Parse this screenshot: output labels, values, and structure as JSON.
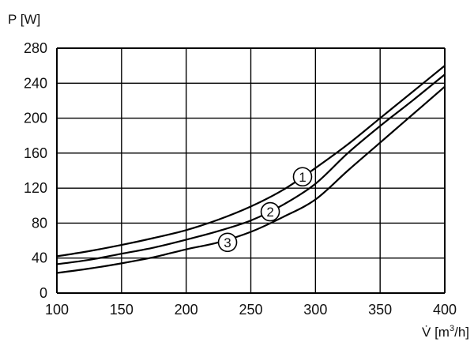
{
  "chart_data": {
    "type": "line",
    "ylabel": "P [W]",
    "xlabel_main": "V̇ [m",
    "xlabel_sup": "3",
    "xlabel_tail": "/h]",
    "xlim": [
      100,
      400
    ],
    "ylim": [
      0,
      280
    ],
    "xticks": [
      100,
      150,
      200,
      250,
      300,
      350,
      400
    ],
    "yticks": [
      0,
      40,
      80,
      120,
      160,
      200,
      240,
      280
    ],
    "grid": true,
    "series": [
      {
        "marker": "1",
        "x": [
          100,
          125,
          150,
          175,
          200,
          225,
          250,
          275,
          300,
          325,
          350,
          375,
          400
        ],
        "y": [
          42,
          48,
          55,
          63,
          72,
          84,
          99,
          118,
          143,
          170,
          200,
          230,
          260
        ],
        "label_at": [
          290,
          133
        ]
      },
      {
        "marker": "2",
        "x": [
          100,
          125,
          150,
          175,
          200,
          225,
          250,
          275,
          300,
          325,
          350,
          375,
          400
        ],
        "y": [
          33,
          38,
          45,
          52,
          61,
          71,
          83,
          101,
          125,
          160,
          191,
          220,
          250
        ],
        "label_at": [
          265,
          93
        ]
      },
      {
        "marker": "3",
        "x": [
          100,
          125,
          150,
          175,
          200,
          225,
          250,
          275,
          300,
          325,
          350,
          375,
          400
        ],
        "y": [
          23,
          28,
          34,
          41,
          50,
          58,
          70,
          87,
          107,
          140,
          172,
          204,
          236
        ],
        "label_at": [
          232,
          58
        ]
      }
    ]
  }
}
